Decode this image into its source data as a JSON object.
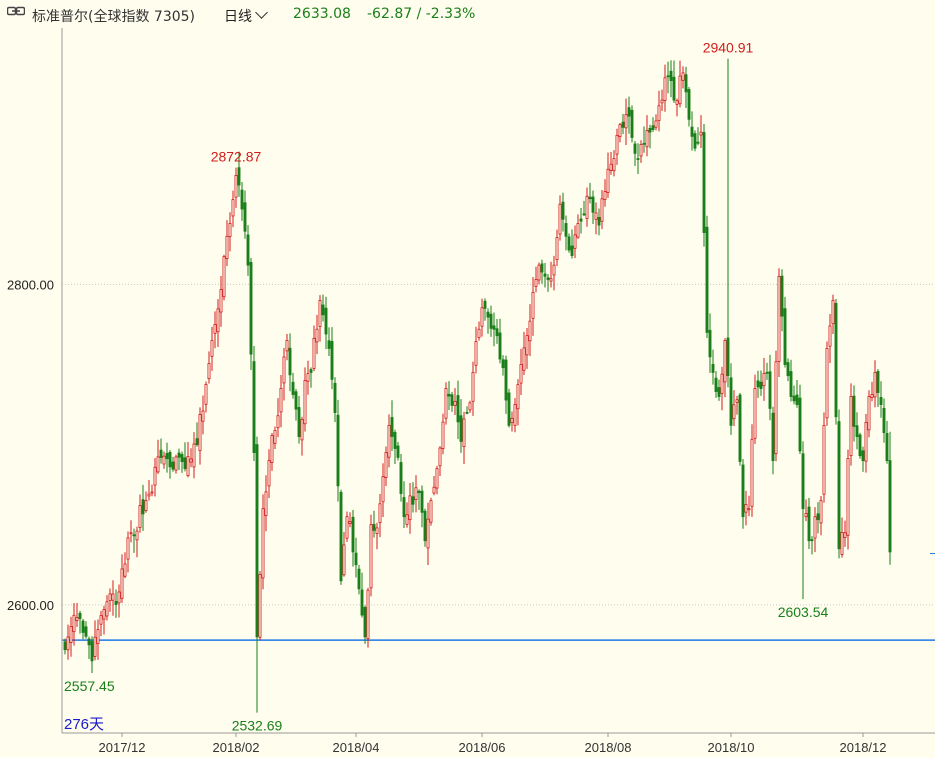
{
  "header": {
    "title": "标准普尔(全球指数 7305)",
    "period": "日线",
    "price": "2633.08",
    "change": "-62.87 / -2.33%"
  },
  "colors": {
    "up": "#d21b1b",
    "down": "#1a7f1a",
    "hline": "#1e78e6",
    "axis": "#999999",
    "grid": "#c8c8c8",
    "bg": "#fffeee"
  },
  "chart_data": {
    "type": "candlestick",
    "title": "",
    "ylim": [
      2520,
      2960
    ],
    "yticks": [
      2600.0,
      2800.0
    ],
    "ytick_labels": [
      "2600.00",
      "2800.00"
    ],
    "xtick_labels": [
      "2017/12",
      "2018/02",
      "2018/04",
      "2018/06",
      "2018/08",
      "2018/10",
      "2018/12"
    ],
    "xtick_positions": [
      19,
      57,
      97,
      139,
      181,
      222,
      266
    ],
    "days": 276,
    "days_label": "276天",
    "horizontal_line": 2578,
    "annotations": [
      {
        "label": "2557.45",
        "value": 2557.45,
        "index": 9,
        "type": "low"
      },
      {
        "label": "2872.87",
        "value": 2872.87,
        "index": 57,
        "type": "high"
      },
      {
        "label": "2532.69",
        "value": 2532.69,
        "index": 64,
        "type": "low"
      },
      {
        "label": "2940.91",
        "value": 2940.91,
        "index": 221,
        "type": "high"
      },
      {
        "label": "2603.54",
        "value": 2603.54,
        "index": 246,
        "type": "low"
      }
    ],
    "anchors": [
      [
        0,
        2572
      ],
      [
        4,
        2592
      ],
      [
        9,
        2565
      ],
      [
        13,
        2597
      ],
      [
        18,
        2608
      ],
      [
        22,
        2645
      ],
      [
        27,
        2665
      ],
      [
        32,
        2692
      ],
      [
        40,
        2685
      ],
      [
        44,
        2700
      ],
      [
        50,
        2775
      ],
      [
        54,
        2830
      ],
      [
        57,
        2868
      ],
      [
        59,
        2847
      ],
      [
        61,
        2812
      ],
      [
        63,
        2695
      ],
      [
        64,
        2580
      ],
      [
        66,
        2660
      ],
      [
        68,
        2690
      ],
      [
        71,
        2718
      ],
      [
        74,
        2765
      ],
      [
        78,
        2705
      ],
      [
        80,
        2740
      ],
      [
        82,
        2745
      ],
      [
        85,
        2790
      ],
      [
        88,
        2760
      ],
      [
        90,
        2720
      ],
      [
        92,
        2615
      ],
      [
        94,
        2655
      ],
      [
        97,
        2625
      ],
      [
        100,
        2580
      ],
      [
        102,
        2650
      ],
      [
        104,
        2648
      ],
      [
        106,
        2680
      ],
      [
        108,
        2712
      ],
      [
        111,
        2692
      ],
      [
        113,
        2655
      ],
      [
        115,
        2668
      ],
      [
        118,
        2670
      ],
      [
        120,
        2640
      ],
      [
        122,
        2665
      ],
      [
        124,
        2685
      ],
      [
        127,
        2735
      ],
      [
        130,
        2727
      ],
      [
        132,
        2702
      ],
      [
        134,
        2720
      ],
      [
        136,
        2745
      ],
      [
        138,
        2772
      ],
      [
        140,
        2785
      ],
      [
        143,
        2772
      ],
      [
        146,
        2748
      ],
      [
        148,
        2712
      ],
      [
        150,
        2725
      ],
      [
        152,
        2750
      ],
      [
        154,
        2768
      ],
      [
        156,
        2795
      ],
      [
        158,
        2812
      ],
      [
        160,
        2805
      ],
      [
        163,
        2812
      ],
      [
        165,
        2850
      ],
      [
        167,
        2830
      ],
      [
        169,
        2818
      ],
      [
        171,
        2838
      ],
      [
        174,
        2855
      ],
      [
        176,
        2845
      ],
      [
        178,
        2837
      ],
      [
        180,
        2858
      ],
      [
        182,
        2875
      ],
      [
        184,
        2893
      ],
      [
        186,
        2898
      ],
      [
        188,
        2905
      ],
      [
        191,
        2878
      ],
      [
        193,
        2888
      ],
      [
        195,
        2895
      ],
      [
        197,
        2902
      ],
      [
        199,
        2915
      ],
      [
        201,
        2930
      ],
      [
        203,
        2915
      ],
      [
        206,
        2932
      ],
      [
        208,
        2903
      ],
      [
        210,
        2885
      ],
      [
        212,
        2895
      ],
      [
        214,
        2770
      ],
      [
        216,
        2745
      ],
      [
        218,
        2730
      ],
      [
        220,
        2765
      ],
      [
        222,
        2712
      ],
      [
        224,
        2728
      ],
      [
        226,
        2655
      ],
      [
        228,
        2660
      ],
      [
        230,
        2735
      ],
      [
        232,
        2735
      ],
      [
        234,
        2745
      ],
      [
        236,
        2690
      ],
      [
        238,
        2805
      ],
      [
        240,
        2750
      ],
      [
        242,
        2730
      ],
      [
        244,
        2725
      ],
      [
        246,
        2660
      ],
      [
        248,
        2640
      ],
      [
        250,
        2655
      ],
      [
        252,
        2665
      ],
      [
        254,
        2760
      ],
      [
        256,
        2790
      ],
      [
        258,
        2635
      ],
      [
        260,
        2645
      ],
      [
        262,
        2730
      ],
      [
        264,
        2705
      ],
      [
        266,
        2690
      ],
      [
        268,
        2730
      ],
      [
        270,
        2745
      ],
      [
        272,
        2725
      ],
      [
        274,
        2690
      ],
      [
        275,
        2633
      ]
    ]
  }
}
